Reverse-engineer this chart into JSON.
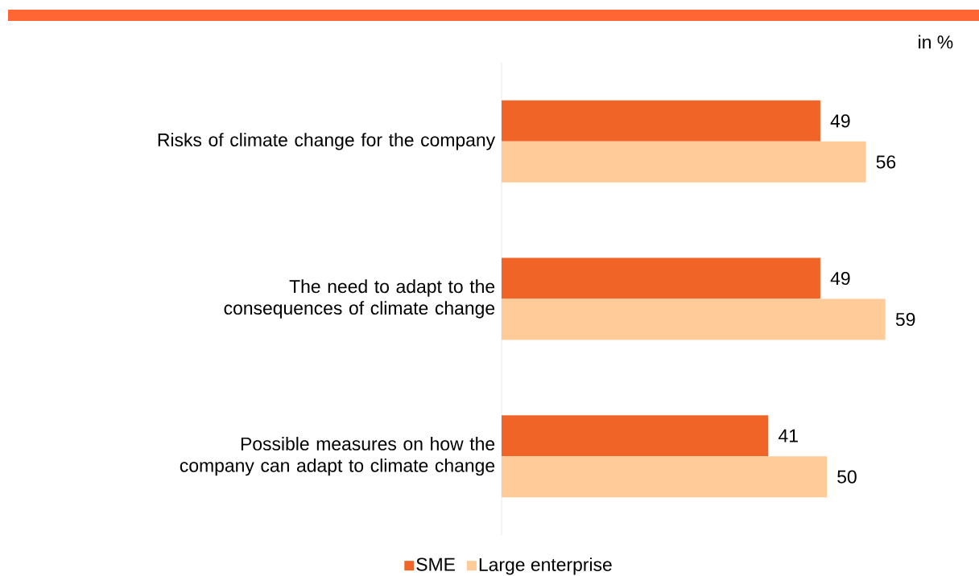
{
  "chart_data": {
    "type": "bar",
    "orientation": "horizontal",
    "categories": [
      "Risks of climate change for the company",
      "The need to adapt to the consequences of climate change",
      "Possible measures on how the company can adapt to climate change"
    ],
    "series": [
      {
        "name": "SME",
        "color": "#f06428",
        "values": [
          49,
          49,
          41
        ]
      },
      {
        "name": "Large enterprise",
        "color": "#ffcc99",
        "values": [
          56,
          59,
          50
        ]
      }
    ],
    "data_labels": true,
    "legend": "bottom",
    "tick_labels": "y",
    "annotations": [
      "in %"
    ]
  }
}
